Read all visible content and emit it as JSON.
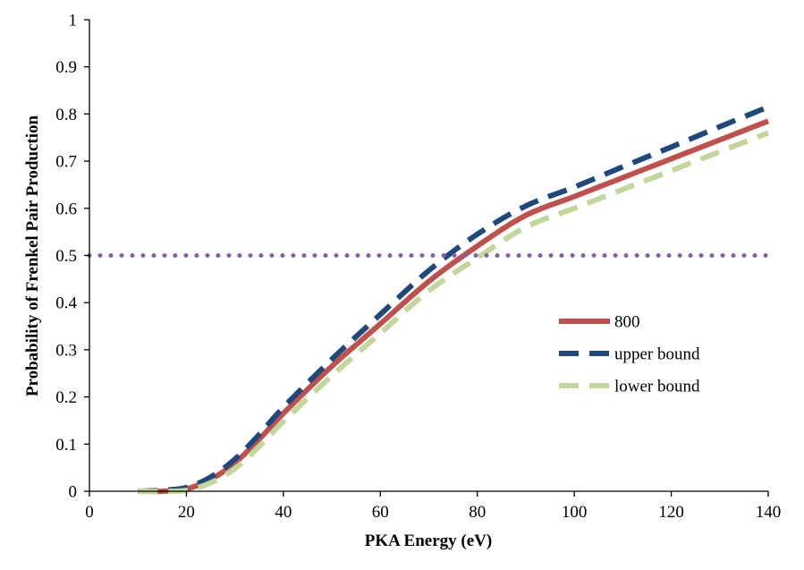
{
  "chart_data": {
    "type": "line",
    "title": "",
    "xlabel": "PKA Energy (eV)",
    "ylabel": "Probability of Frenkel Pair Production",
    "xlim": [
      0,
      140
    ],
    "ylim": [
      0,
      1
    ],
    "xticks": [
      0,
      20,
      40,
      60,
      80,
      100,
      120,
      140
    ],
    "yticks": [
      0,
      0.1,
      0.2,
      0.3,
      0.4,
      0.5,
      0.6,
      0.7,
      0.8,
      0.9,
      1
    ],
    "xtick_labels": [
      "0",
      "20",
      "40",
      "60",
      "80",
      "100",
      "120",
      "140"
    ],
    "ytick_labels": [
      "0",
      "0.1",
      "0.2",
      "0.3",
      "0.4",
      "0.5",
      "0.6",
      "0.7",
      "0.8",
      "0.9",
      "1"
    ],
    "grid": false,
    "legend_position": "right",
    "series": [
      {
        "name": "800",
        "color": "#c0504d",
        "style": "solid",
        "x": [
          10,
          15,
          20,
          25,
          30,
          35,
          40,
          50,
          60,
          70,
          80,
          90,
          100,
          110,
          120,
          130,
          140
        ],
        "y": [
          0,
          0,
          0.005,
          0.025,
          0.06,
          0.11,
          0.165,
          0.265,
          0.355,
          0.445,
          0.52,
          0.585,
          0.625,
          0.665,
          0.705,
          0.745,
          0.785
        ]
      },
      {
        "name": "upper bound",
        "color": "#1f497d",
        "style": "dashed",
        "x": [
          10,
          15,
          20,
          25,
          30,
          35,
          40,
          50,
          60,
          70,
          80,
          90,
          100,
          110,
          120,
          130,
          140
        ],
        "y": [
          0,
          0.002,
          0.008,
          0.03,
          0.068,
          0.12,
          0.178,
          0.28,
          0.375,
          0.468,
          0.545,
          0.605,
          0.645,
          0.688,
          0.73,
          0.773,
          0.815
        ]
      },
      {
        "name": "lower bound",
        "color": "#c3d69b",
        "style": "dashed",
        "x": [
          10,
          15,
          20,
          25,
          30,
          35,
          40,
          50,
          60,
          70,
          80,
          90,
          100,
          110,
          120,
          130,
          140
        ],
        "y": [
          0,
          0,
          0.002,
          0.018,
          0.048,
          0.095,
          0.148,
          0.245,
          0.335,
          0.425,
          0.495,
          0.56,
          0.6,
          0.64,
          0.68,
          0.72,
          0.76
        ]
      },
      {
        "name": "",
        "color": "#8064a2",
        "style": "dotted",
        "x": [
          0,
          140
        ],
        "y": [
          0.5,
          0.5
        ]
      }
    ]
  }
}
